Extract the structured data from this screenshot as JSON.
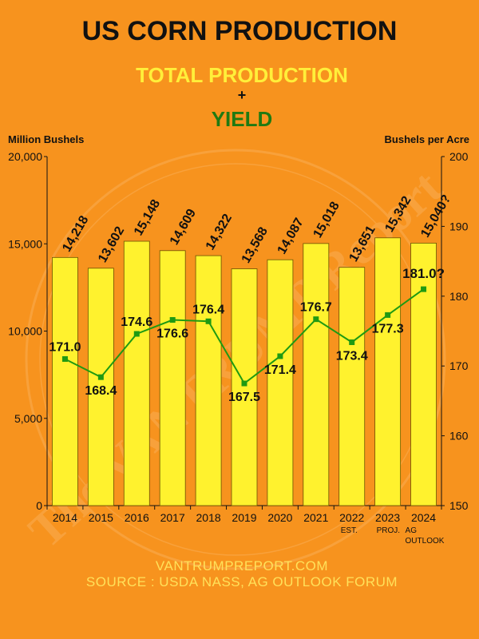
{
  "header": {
    "title": "US CORN PRODUCTION",
    "subtitle_production": "TOTAL PRODUCTION",
    "plus": "+",
    "subtitle_yield": "YIELD"
  },
  "watermark": "The VANTRUMP Report",
  "footer": {
    "website": "VANTRUMPREPORT.COM",
    "source": "SOURCE : USDA NASS, AG OUTLOOK FORUM"
  },
  "colors": {
    "background": "#f7931e",
    "bar_fill": "#fff22e",
    "yield_line": "#1f9a12",
    "subtitle_production": "#ffef3a",
    "subtitle_yield": "#1f7a12",
    "footer_text": "#ffe15a"
  },
  "chart_data": {
    "type": "bar",
    "categories": [
      "2014",
      "2015",
      "2016",
      "2017",
      "2018",
      "2019",
      "2020",
      "2021",
      "2022",
      "2023",
      "2024"
    ],
    "category_notes": [
      "",
      "",
      "",
      "",
      "",
      "",
      "",
      "",
      "EST.",
      "PROJ.",
      "AG OUTLOOK"
    ],
    "series": [
      {
        "name": "TOTAL PRODUCTION",
        "type": "bar",
        "axis": "left",
        "values": [
          14218,
          13602,
          15148,
          14609,
          14322,
          13568,
          14087,
          15018,
          13651,
          15342,
          15040
        ],
        "labels": [
          "14,218",
          "13,602",
          "15,148",
          "14,609",
          "14,322",
          "13,568",
          "14,087",
          "15,018",
          "13,651",
          "15,342",
          "15,040?"
        ]
      },
      {
        "name": "YIELD",
        "type": "line",
        "axis": "right",
        "values": [
          171.0,
          168.4,
          174.6,
          176.6,
          176.4,
          167.5,
          171.4,
          176.7,
          173.4,
          177.3,
          181.0
        ],
        "labels": [
          "171.0",
          "168.4",
          "174.6",
          "176.6",
          "176.4",
          "167.5",
          "171.4",
          "176.7",
          "173.4",
          "177.3",
          "181.0?"
        ],
        "label_side": [
          "above",
          "below",
          "above",
          "below",
          "above",
          "below",
          "below",
          "above",
          "below",
          "below",
          "above"
        ]
      }
    ],
    "ylabel": "Million Bushels",
    "y2label": "Bushels per Acre",
    "ylim": [
      0,
      20000
    ],
    "y2lim": [
      150,
      200
    ],
    "yticks": [
      "0",
      "5,000",
      "10,000",
      "15,000",
      "20,000"
    ],
    "y2ticks": [
      "150",
      "160",
      "170",
      "180",
      "190",
      "200"
    ],
    "grid": false
  }
}
